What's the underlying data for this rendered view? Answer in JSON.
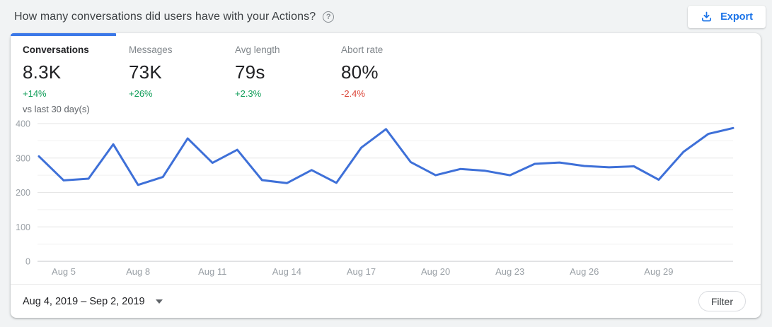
{
  "header": {
    "title": "How many conversations did users have with your Actions?",
    "help_glyph": "?",
    "export_label": "Export"
  },
  "metrics": [
    {
      "label": "Conversations",
      "value": "8.3K",
      "delta": "+14%",
      "note": "vs last 30 day(s)",
      "selected": true
    },
    {
      "label": "Messages",
      "value": "73K",
      "delta": "+26%"
    },
    {
      "label": "Avg length",
      "value": "79s",
      "delta": "+2.3%"
    },
    {
      "label": "Abort rate",
      "value": "80%",
      "delta": "-2.4%"
    }
  ],
  "footer": {
    "date_range": "Aug 4, 2019 – Sep 2, 2019",
    "filter_label": "Filter"
  },
  "colors": {
    "accent_blue": "#1a73e8",
    "tab_indicator": "#3b78e8",
    "line": "#3e70d8",
    "positive": "#0f9d58",
    "negative": "#db4437",
    "axis_text": "#9aa0a6"
  },
  "chart_data": {
    "type": "line",
    "series_name": "Conversations",
    "x": [
      "Aug 4",
      "Aug 5",
      "Aug 6",
      "Aug 7",
      "Aug 8",
      "Aug 9",
      "Aug 10",
      "Aug 11",
      "Aug 12",
      "Aug 13",
      "Aug 14",
      "Aug 15",
      "Aug 16",
      "Aug 17",
      "Aug 18",
      "Aug 19",
      "Aug 20",
      "Aug 21",
      "Aug 22",
      "Aug 23",
      "Aug 24",
      "Aug 25",
      "Aug 26",
      "Aug 27",
      "Aug 28",
      "Aug 29",
      "Aug 30",
      "Aug 31",
      "Sep 1"
    ],
    "values": [
      305,
      235,
      240,
      340,
      222,
      245,
      357,
      286,
      324,
      236,
      227,
      265,
      228,
      330,
      384,
      288,
      250,
      268,
      263,
      250,
      283,
      287,
      277,
      273,
      276,
      237,
      318,
      370,
      387
    ],
    "xticks": [
      "Aug 5",
      "Aug 8",
      "Aug 11",
      "Aug 14",
      "Aug 17",
      "Aug 20",
      "Aug 23",
      "Aug 26",
      "Aug 29"
    ],
    "yticks": [
      0,
      100,
      200,
      300,
      400
    ],
    "ylim": [
      0,
      400
    ],
    "grid_interval": 50,
    "legend": "none",
    "grid": true
  }
}
